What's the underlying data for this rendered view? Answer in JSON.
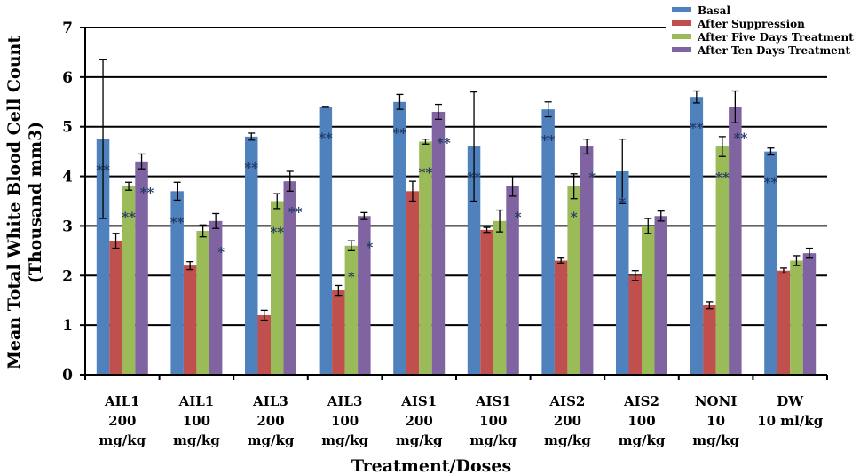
{
  "chart_data": {
    "type": "bar",
    "ylabel_line1": "Mean Total White Blood Cell Count",
    "ylabel_line2": "(Thousand mm3)",
    "xlabel": "Treatment/Doses",
    "ylim": [
      0,
      7
    ],
    "yticks": [
      "0",
      "1",
      "2",
      "3",
      "4",
      "5",
      "6",
      "7"
    ],
    "grid": true,
    "legend_position": "top-right",
    "categories": [
      [
        "AIL1",
        "200",
        "mg/kg"
      ],
      [
        "AIL1",
        "100",
        "mg/kg"
      ],
      [
        "AIL3",
        "200",
        "mg/kg"
      ],
      [
        "AIL3",
        "100",
        "mg/kg"
      ],
      [
        "AIS1",
        "200",
        "mg/kg"
      ],
      [
        "AIS1",
        "100",
        "mg/kg"
      ],
      [
        "AIS2",
        "200",
        "mg/kg"
      ],
      [
        "AIS2",
        "100",
        "mg/kg"
      ],
      [
        "NONI",
        "10",
        "mg/kg"
      ],
      [
        "DW",
        "10 ml/kg",
        ""
      ]
    ],
    "series": [
      {
        "name": "Basal",
        "color": "#4f81bd",
        "values": [
          4.75,
          3.7,
          4.8,
          5.4,
          5.5,
          4.6,
          5.35,
          4.1,
          5.6,
          4.5
        ],
        "errors": [
          1.6,
          0.18,
          0.07,
          0.01,
          0.15,
          1.1,
          0.15,
          0.65,
          0.12,
          0.07
        ],
        "marks": [
          "**",
          "**",
          "**",
          "**",
          "**",
          "**",
          "**",
          "*",
          "**",
          "**"
        ]
      },
      {
        "name": "After Suppression",
        "color": "#c0504d",
        "values": [
          2.7,
          2.2,
          1.2,
          1.7,
          3.7,
          2.92,
          2.3,
          2.0,
          1.4,
          2.1
        ],
        "errors": [
          0.15,
          0.08,
          0.1,
          0.1,
          0.2,
          0.05,
          0.05,
          0.1,
          0.07,
          0.05
        ],
        "marks": [
          "",
          "",
          "",
          "",
          "",
          "",
          "",
          "",
          "",
          ""
        ]
      },
      {
        "name": "After Five Days Treatment",
        "color": "#9bbb59",
        "values": [
          3.8,
          2.9,
          3.5,
          2.6,
          4.7,
          3.1,
          3.8,
          3.0,
          4.6,
          2.3
        ],
        "errors": [
          0.08,
          0.12,
          0.15,
          0.1,
          0.05,
          0.22,
          0.25,
          0.15,
          0.2,
          0.1
        ],
        "marks": [
          "**",
          "",
          "**",
          "*",
          "**",
          "",
          "*",
          "",
          "**",
          ""
        ]
      },
      {
        "name": "After Ten Days Treatment",
        "color": "#8064a2",
        "values": [
          4.3,
          3.1,
          3.9,
          3.2,
          5.3,
          3.8,
          4.6,
          3.2,
          5.4,
          2.45
        ],
        "errors": [
          0.15,
          0.15,
          0.2,
          0.07,
          0.15,
          0.2,
          0.15,
          0.1,
          0.32,
          0.1
        ],
        "marks": [
          "**",
          "*",
          "**",
          "*",
          "**",
          "*",
          "*",
          "",
          "**",
          ""
        ]
      }
    ]
  }
}
